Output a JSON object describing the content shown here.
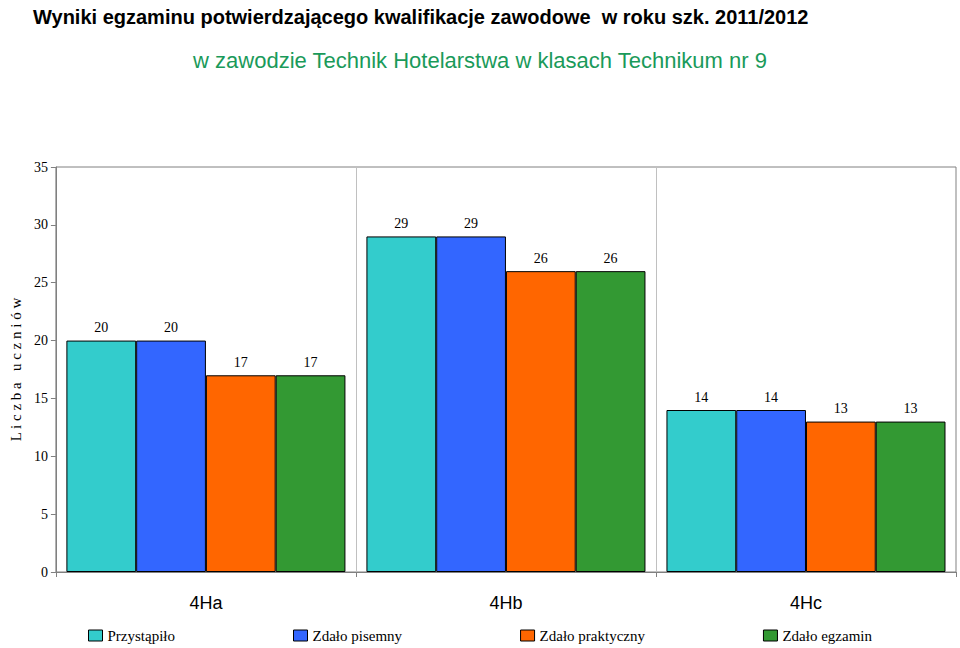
{
  "chart_data": {
    "type": "bar",
    "title": "Wyniki egzaminu potwierdzającego kwalifikacje zawodowe  w roku szk. 2011/2012",
    "subtitle": "w zawodzie Technik Hotelarstwa w klasach Technikum nr 9",
    "y_label": "L i c z b a   u c z n i ó w",
    "categories": [
      "4Ha",
      "4Hb",
      "4Hc"
    ],
    "series": [
      {
        "name": "Przystąpiło",
        "color": "#33CCCC",
        "values": [
          20,
          29,
          14
        ]
      },
      {
        "name": "Zdało pisemny",
        "color": "#3366FF",
        "values": [
          20,
          29,
          14
        ]
      },
      {
        "name": "Zdało praktyczny",
        "color": "#FF6600",
        "values": [
          17,
          26,
          13
        ]
      },
      {
        "name": "Zdało egzamin",
        "color": "#339933",
        "values": [
          17,
          26,
          13
        ]
      }
    ],
    "ylim": [
      0,
      35
    ],
    "yticks": [
      0,
      5,
      10,
      15,
      20,
      25,
      30,
      35
    ],
    "grid": false,
    "legend": "bottom",
    "data_labels": true
  }
}
